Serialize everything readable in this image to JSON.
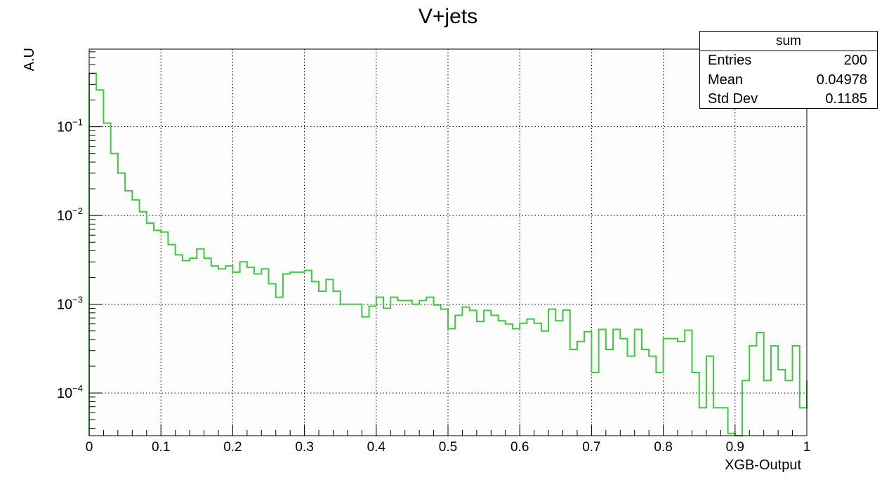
{
  "chart_data": {
    "type": "histogram",
    "title": "V+jets",
    "xlabel": "XGB-Output",
    "ylabel": "A.U",
    "xlim": [
      0,
      1
    ],
    "ylim_log": [
      3.3e-05,
      0.75
    ],
    "y_scale": "log",
    "grid": true,
    "x_ticks": [
      "0",
      "0.1",
      "0.2",
      "0.3",
      "0.4",
      "0.5",
      "0.6",
      "0.7",
      "0.8",
      "0.9",
      "1"
    ],
    "y_ticks": [
      {
        "base": "10",
        "exp": "−1"
      },
      {
        "base": "10",
        "exp": "−2"
      },
      {
        "base": "10",
        "exp": "−3"
      },
      {
        "base": "10",
        "exp": "−4"
      }
    ],
    "bin_edges_start": 0,
    "bin_width": 0.01,
    "values": [
      0.4,
      0.26,
      0.11,
      0.05,
      0.03,
      0.019,
      0.015,
      0.011,
      0.0082,
      0.0068,
      0.0065,
      0.0047,
      0.0036,
      0.0031,
      0.0033,
      0.0042,
      0.0033,
      0.0027,
      0.0025,
      0.0027,
      0.0023,
      0.003,
      0.0026,
      0.0022,
      0.0025,
      0.0017,
      0.0012,
      0.0022,
      0.0023,
      0.0023,
      0.0024,
      0.0018,
      0.0014,
      0.0019,
      0.0014,
      0.001,
      0.001,
      0.001,
      0.00072,
      0.00095,
      0.0012,
      0.0009,
      0.0012,
      0.0011,
      0.0011,
      0.001,
      0.0011,
      0.0012,
      0.00098,
      0.00088,
      0.00053,
      0.00075,
      0.00093,
      0.00085,
      0.00064,
      0.00085,
      0.00075,
      0.00065,
      0.0006,
      0.00053,
      0.00061,
      0.00068,
      0.00061,
      0.0005,
      0.00088,
      0.00065,
      0.00086,
      0.00031,
      0.00038,
      0.00049,
      0.00017,
      0.00052,
      0.00031,
      0.00052,
      0.00041,
      0.00026,
      0.00052,
      0.00031,
      0.00026,
      0.00017,
      0.00041,
      0.00041,
      0.00038,
      0.00051,
      0.00017,
      6.8e-05,
      0.00026,
      6.8e-05,
      6.8e-05,
      3.5e-05,
      2.7e-05,
      0.000138,
      0.00034,
      0.00048,
      0.000138,
      0.00034,
      0.000183,
      0.000138,
      0.00034,
      6.8e-05,
      0.000138
    ],
    "series": [
      {
        "color": "#3fc93f"
      }
    ]
  },
  "stats": {
    "title": "sum",
    "rows": [
      {
        "label": "Entries",
        "value": "200"
      },
      {
        "label": "Mean",
        "value": "0.04978"
      },
      {
        "label": "Std Dev",
        "value": "0.1185"
      }
    ]
  }
}
